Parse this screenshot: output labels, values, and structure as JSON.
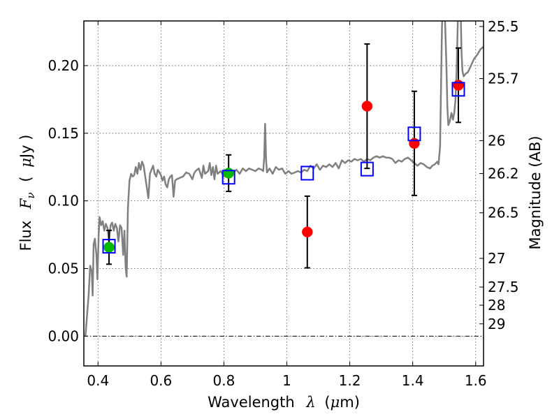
{
  "chart_data": {
    "type": "scatter",
    "xlabel": {
      "prefix": "Wavelength",
      "symbol": "λ",
      "unit_open": "(",
      "unit_mu": "μ",
      "unit_rest": "m)"
    },
    "ylabel": {
      "prefix": "Flux",
      "symbol": "F",
      "subscript": "ν",
      "unit_open": "(",
      "unit_mu": "μ",
      "unit_rest": "Jy )"
    },
    "ylabel_right": "Magnitude (AB)",
    "xlim": [
      0.355,
      1.625
    ],
    "ylim": [
      -0.022,
      0.233
    ],
    "grid": true,
    "x_ticks": [
      {
        "value": 0.4,
        "label": "0.4"
      },
      {
        "value": 0.6,
        "label": "0.6"
      },
      {
        "value": 0.8,
        "label": "0.8"
      },
      {
        "value": 1.0,
        "label": "1"
      },
      {
        "value": 1.2,
        "label": "1.2"
      },
      {
        "value": 1.4,
        "label": "1.4"
      },
      {
        "value": 1.6,
        "label": "1.6"
      }
    ],
    "y_ticks": [
      {
        "value": 0.0,
        "label": "0.00"
      },
      {
        "value": 0.05,
        "label": "0.05"
      },
      {
        "value": 0.1,
        "label": "0.10"
      },
      {
        "value": 0.15,
        "label": "0.15"
      },
      {
        "value": 0.2,
        "label": "0.20"
      }
    ],
    "right_ticks": [
      {
        "label": "25.5",
        "flux": 0.2289
      },
      {
        "label": "25.7",
        "flux": 0.1904
      },
      {
        "label": "26",
        "flux": 0.1445
      },
      {
        "label": "26.2",
        "flux": 0.1202
      },
      {
        "label": "26.5",
        "flux": 0.0912
      },
      {
        "label": "27",
        "flux": 0.0575
      },
      {
        "label": "27.5",
        "flux": 0.0363
      },
      {
        "label": "28",
        "flux": 0.0229
      },
      {
        "label": "29",
        "flux": 0.0091
      }
    ],
    "colors": {
      "model": "#808080",
      "observed_green": "#00bb00",
      "observed_red": "#ff0000",
      "model_box": "#0000ff",
      "errorbar": "#000000",
      "grid": "#555555"
    },
    "model_spectrum": [
      [
        0.36,
        0.0
      ],
      [
        0.365,
        0.015
      ],
      [
        0.37,
        0.03
      ],
      [
        0.375,
        0.052
      ],
      [
        0.38,
        0.048
      ],
      [
        0.383,
        0.03
      ],
      [
        0.386,
        0.068
      ],
      [
        0.39,
        0.072
      ],
      [
        0.395,
        0.06
      ],
      [
        0.398,
        0.042
      ],
      [
        0.402,
        0.075
      ],
      [
        0.405,
        0.088
      ],
      [
        0.41,
        0.082
      ],
      [
        0.415,
        0.085
      ],
      [
        0.42,
        0.078
      ],
      [
        0.425,
        0.083
      ],
      [
        0.43,
        0.08
      ],
      [
        0.435,
        0.07
      ],
      [
        0.44,
        0.082
      ],
      [
        0.445,
        0.084
      ],
      [
        0.45,
        0.078
      ],
      [
        0.455,
        0.083
      ],
      [
        0.46,
        0.08
      ],
      [
        0.465,
        0.07
      ],
      [
        0.47,
        0.082
      ],
      [
        0.475,
        0.08
      ],
      [
        0.48,
        0.06
      ],
      [
        0.484,
        0.078
      ],
      [
        0.488,
        0.05
      ],
      [
        0.491,
        0.044
      ],
      [
        0.495,
        0.095
      ],
      [
        0.5,
        0.115
      ],
      [
        0.505,
        0.12
      ],
      [
        0.51,
        0.118
      ],
      [
        0.515,
        0.119
      ],
      [
        0.52,
        0.125
      ],
      [
        0.525,
        0.12
      ],
      [
        0.53,
        0.128
      ],
      [
        0.535,
        0.123
      ],
      [
        0.54,
        0.129
      ],
      [
        0.545,
        0.126
      ],
      [
        0.55,
        0.118
      ],
      [
        0.555,
        0.11
      ],
      [
        0.56,
        0.102
      ],
      [
        0.565,
        0.12
      ],
      [
        0.57,
        0.123
      ],
      [
        0.575,
        0.126
      ],
      [
        0.58,
        0.12
      ],
      [
        0.585,
        0.118
      ],
      [
        0.59,
        0.123
      ],
      [
        0.595,
        0.121
      ],
      [
        0.6,
        0.119
      ],
      [
        0.605,
        0.115
      ],
      [
        0.61,
        0.118
      ],
      [
        0.615,
        0.112
      ],
      [
        0.62,
        0.11
      ],
      [
        0.625,
        0.116
      ],
      [
        0.63,
        0.118
      ],
      [
        0.635,
        0.119
      ],
      [
        0.64,
        0.103
      ],
      [
        0.645,
        0.115
      ],
      [
        0.65,
        0.116
      ],
      [
        0.66,
        0.117
      ],
      [
        0.67,
        0.118
      ],
      [
        0.68,
        0.121
      ],
      [
        0.69,
        0.12
      ],
      [
        0.7,
        0.116
      ],
      [
        0.705,
        0.12
      ],
      [
        0.71,
        0.122
      ],
      [
        0.72,
        0.124
      ],
      [
        0.73,
        0.117
      ],
      [
        0.735,
        0.126
      ],
      [
        0.74,
        0.12
      ],
      [
        0.75,
        0.122
      ],
      [
        0.755,
        0.128
      ],
      [
        0.76,
        0.119
      ],
      [
        0.765,
        0.125
      ],
      [
        0.77,
        0.116
      ],
      [
        0.775,
        0.126
      ],
      [
        0.78,
        0.12
      ],
      [
        0.79,
        0.122
      ],
      [
        0.8,
        0.118
      ],
      [
        0.81,
        0.12
      ],
      [
        0.82,
        0.122
      ],
      [
        0.83,
        0.121
      ],
      [
        0.84,
        0.123
      ],
      [
        0.85,
        0.12
      ],
      [
        0.86,
        0.124
      ],
      [
        0.87,
        0.122
      ],
      [
        0.88,
        0.124
      ],
      [
        0.89,
        0.123
      ],
      [
        0.9,
        0.122
      ],
      [
        0.91,
        0.124
      ],
      [
        0.92,
        0.123
      ],
      [
        0.925,
        0.122
      ],
      [
        0.928,
        0.132
      ],
      [
        0.931,
        0.157
      ],
      [
        0.934,
        0.13
      ],
      [
        0.937,
        0.121
      ],
      [
        0.945,
        0.124
      ],
      [
        0.955,
        0.12
      ],
      [
        0.965,
        0.125
      ],
      [
        0.975,
        0.123
      ],
      [
        0.985,
        0.124
      ],
      [
        0.995,
        0.12
      ],
      [
        1.005,
        0.122
      ],
      [
        1.015,
        0.12
      ],
      [
        1.025,
        0.121
      ],
      [
        1.035,
        0.122
      ],
      [
        1.045,
        0.121
      ],
      [
        1.055,
        0.123
      ],
      [
        1.065,
        0.122
      ],
      [
        1.075,
        0.126
      ],
      [
        1.085,
        0.124
      ],
      [
        1.095,
        0.127
      ],
      [
        1.105,
        0.123
      ],
      [
        1.115,
        0.126
      ],
      [
        1.125,
        0.125
      ],
      [
        1.135,
        0.127
      ],
      [
        1.145,
        0.125
      ],
      [
        1.155,
        0.128
      ],
      [
        1.165,
        0.124
      ],
      [
        1.175,
        0.13
      ],
      [
        1.185,
        0.128
      ],
      [
        1.195,
        0.13
      ],
      [
        1.205,
        0.129
      ],
      [
        1.215,
        0.131
      ],
      [
        1.225,
        0.13
      ],
      [
        1.235,
        0.131
      ],
      [
        1.245,
        0.129
      ],
      [
        1.255,
        0.131
      ],
      [
        1.265,
        0.13
      ],
      [
        1.275,
        0.132
      ],
      [
        1.285,
        0.133
      ],
      [
        1.295,
        0.132
      ],
      [
        1.305,
        0.133
      ],
      [
        1.315,
        0.132
      ],
      [
        1.325,
        0.132
      ],
      [
        1.335,
        0.131
      ],
      [
        1.345,
        0.128
      ],
      [
        1.355,
        0.13
      ],
      [
        1.365,
        0.129
      ],
      [
        1.375,
        0.131
      ],
      [
        1.385,
        0.132
      ],
      [
        1.395,
        0.13
      ],
      [
        1.405,
        0.128
      ],
      [
        1.415,
        0.126
      ],
      [
        1.425,
        0.128
      ],
      [
        1.435,
        0.127
      ],
      [
        1.445,
        0.125
      ],
      [
        1.455,
        0.124
      ],
      [
        1.462,
        0.126
      ],
      [
        1.47,
        0.127
      ],
      [
        1.478,
        0.129
      ],
      [
        1.482,
        0.127
      ],
      [
        1.487,
        0.14
      ],
      [
        1.49,
        0.185
      ],
      [
        1.493,
        0.228
      ],
      [
        1.496,
        0.25
      ],
      [
        1.5,
        0.25
      ],
      [
        1.503,
        0.23
      ],
      [
        1.507,
        0.2
      ],
      [
        1.51,
        0.17
      ],
      [
        1.513,
        0.156
      ],
      [
        1.518,
        0.159
      ],
      [
        1.523,
        0.165
      ],
      [
        1.528,
        0.16
      ],
      [
        1.532,
        0.165
      ],
      [
        1.536,
        0.175
      ],
      [
        1.54,
        0.2
      ],
      [
        1.544,
        0.24
      ],
      [
        1.548,
        0.25
      ],
      [
        1.552,
        0.245
      ],
      [
        1.555,
        0.21
      ],
      [
        1.558,
        0.196
      ],
      [
        1.562,
        0.192
      ],
      [
        1.568,
        0.194
      ],
      [
        1.575,
        0.195
      ],
      [
        1.585,
        0.2
      ],
      [
        1.595,
        0.205
      ],
      [
        1.605,
        0.208
      ],
      [
        1.615,
        0.212
      ],
      [
        1.625,
        0.214
      ]
    ],
    "observed_points": [
      {
        "x": 0.435,
        "y": 0.0657,
        "yerr": 0.0125,
        "color": "green"
      },
      {
        "x": 0.815,
        "y": 0.1205,
        "yerr": 0.0135,
        "color": "green"
      },
      {
        "x": 1.065,
        "y": 0.077,
        "yerr": 0.0265,
        "color": "red"
      },
      {
        "x": 1.255,
        "y": 0.17,
        "yerr": 0.046,
        "color": "red"
      },
      {
        "x": 1.405,
        "y": 0.1425,
        "yerr": 0.0385,
        "color": "red"
      },
      {
        "x": 1.545,
        "y": 0.1855,
        "yerr": 0.0275,
        "color": "red"
      }
    ],
    "model_photometry": [
      {
        "x": 0.435,
        "y": 0.0665
      },
      {
        "x": 0.815,
        "y": 0.1175
      },
      {
        "x": 1.065,
        "y": 0.1205
      },
      {
        "x": 1.255,
        "y": 0.1235
      },
      {
        "x": 1.405,
        "y": 0.1495
      },
      {
        "x": 1.545,
        "y": 0.1825
      }
    ]
  }
}
